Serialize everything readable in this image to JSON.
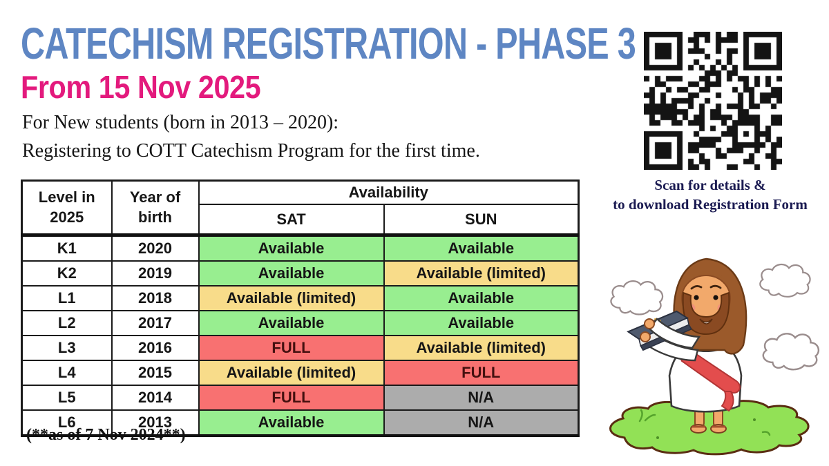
{
  "poster": {
    "title": "CATECHISM REGISTRATION - PHASE 3",
    "date_line": "From 15 Nov 2025",
    "intro_line1": "For New students (born in 2013 – 2020):",
    "intro_line2": "Registering to COTT Catechism Program for the first time.",
    "footnote": "(**as of 7 Nov 2024**)"
  },
  "colors": {
    "title_blue": "#5E86C3",
    "date_pink": "#E31A7D",
    "caption_navy": "#1B1B52",
    "status": {
      "available": "#98EE90",
      "limited": "#F8DC8A",
      "full": "#F87171",
      "na": "#ACACAC"
    }
  },
  "qr": {
    "caption_line1": "Scan for details &",
    "caption_line2": "to download Registration Form"
  },
  "table": {
    "headers": {
      "level": "Level in\n2025",
      "year": "Year of\nbirth",
      "availability": "Availability",
      "sat": "SAT",
      "sun": "SUN"
    },
    "rows": [
      {
        "level": "K1",
        "year": "2020",
        "sat": {
          "label": "Available",
          "status": "available"
        },
        "sun": {
          "label": "Available",
          "status": "available"
        }
      },
      {
        "level": "K2",
        "year": "2019",
        "sat": {
          "label": "Available",
          "status": "available"
        },
        "sun": {
          "label": "Available (limited)",
          "status": "limited"
        }
      },
      {
        "level": "L1",
        "year": "2018",
        "sat": {
          "label": "Available (limited)",
          "status": "limited"
        },
        "sun": {
          "label": "Available",
          "status": "available"
        }
      },
      {
        "level": "L2",
        "year": "2017",
        "sat": {
          "label": "Available",
          "status": "available"
        },
        "sun": {
          "label": "Available",
          "status": "available"
        }
      },
      {
        "level": "L3",
        "year": "2016",
        "sat": {
          "label": "FULL",
          "status": "full"
        },
        "sun": {
          "label": "Available (limited)",
          "status": "limited"
        }
      },
      {
        "level": "L4",
        "year": "2015",
        "sat": {
          "label": "Available (limited)",
          "status": "limited"
        },
        "sun": {
          "label": "FULL",
          "status": "full"
        }
      },
      {
        "level": "L5",
        "year": "2014",
        "sat": {
          "label": "FULL",
          "status": "full"
        },
        "sun": {
          "label": "N/A",
          "status": "na"
        }
      },
      {
        "level": "L6",
        "year": "2013",
        "sat": {
          "label": "Available",
          "status": "available"
        },
        "sun": {
          "label": "N/A",
          "status": "na"
        }
      }
    ]
  }
}
